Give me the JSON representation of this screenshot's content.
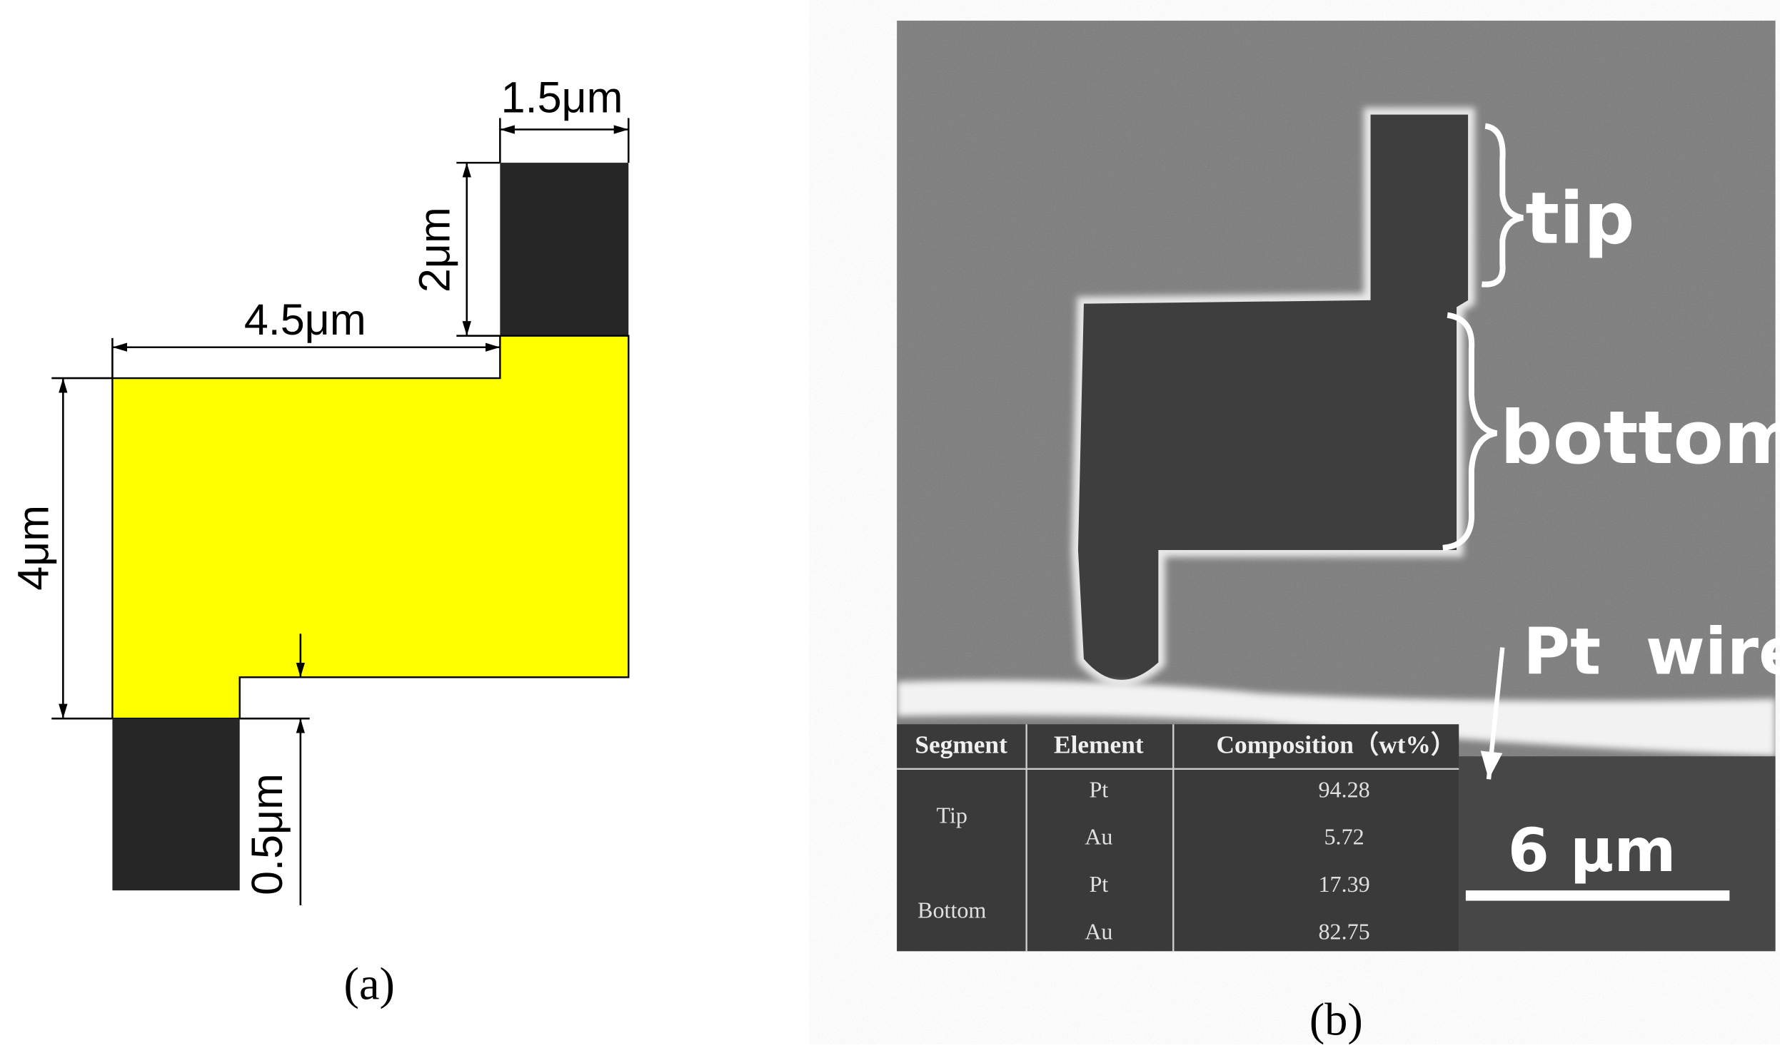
{
  "panel_a": {
    "dimensions": {
      "tip_width": "1.5μm",
      "tip_height": "2μm",
      "step_width": "4.5μm",
      "body_height": "4μm",
      "offset": "0.5μm"
    },
    "caption": "(a)"
  },
  "panel_b": {
    "labels": {
      "tip": "tip",
      "bottom": "bottom",
      "wire": "Pt  wire",
      "scale_bar": "6 μm"
    },
    "table": {
      "header": [
        "Segment",
        "Element",
        "Composition（wt%）"
      ],
      "segments": [
        {
          "name": "Tip",
          "elements": [
            {
              "element": "Pt",
              "composition": 94.28
            },
            {
              "element": "Au",
              "composition": 5.72
            }
          ]
        },
        {
          "name": "Bottom",
          "elements": [
            {
              "element": "Pt",
              "composition": 17.39
            },
            {
              "element": "Au",
              "composition": 82.75
            }
          ]
        }
      ]
    },
    "caption": "(b)"
  }
}
